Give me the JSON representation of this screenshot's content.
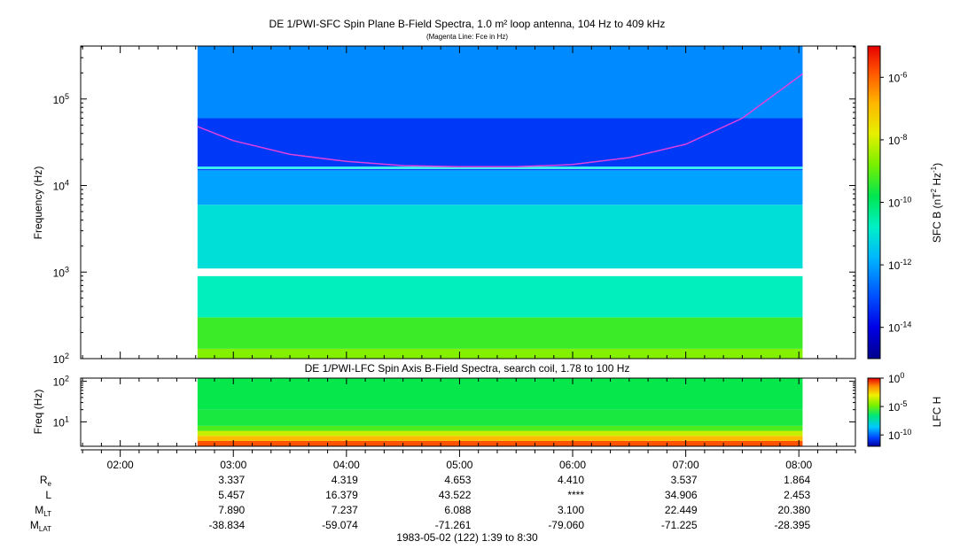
{
  "title": "DE 1/PWI-SFC  Spin Plane B-Field Spectra, 1.0 m² loop antenna, 104 Hz to 409 kHz",
  "subtitle": "(Magenta Line: Fce in Hz)",
  "date_footer": "1983-05-02 (122) 1:39 to 8:30",
  "colors": {
    "magenta_line": "#e040e0",
    "gap_line": "#ffffff",
    "cyan_line": "#40f0f0"
  },
  "chart_data": [
    {
      "type": "heatmap",
      "title": "DE 1/PWI-SFC  Spin Plane B-Field Spectra, 1.0 m² loop antenna, 104 Hz to 409 kHz",
      "subtitle": "(Magenta Line: Fce in Hz)",
      "ylabel": "Frequency (Hz)",
      "yscale": "log",
      "ylim": [
        100,
        409000
      ],
      "y_ticks": [
        {
          "value": 100,
          "base": "10",
          "exp": "2"
        },
        {
          "value": 1000,
          "base": "10",
          "exp": "3"
        },
        {
          "value": 10000,
          "base": "10",
          "exp": "4"
        },
        {
          "value": 100000,
          "base": "10",
          "exp": "5"
        }
      ],
      "data_time_range": [
        "02:41",
        "08:02"
      ],
      "colorbar": {
        "label": "SFC B (nT² Hz⁻¹)",
        "label_main": "SFC B (nT",
        "label_exp": "2",
        "label_mid": " Hz",
        "label_exp2": "-1",
        "label_end": ")",
        "scale": "log",
        "range": [
          1e-15,
          1e-05
        ],
        "ticks": [
          {
            "value": 1e-06,
            "base": "10",
            "exp": "-6"
          },
          {
            "value": 1e-08,
            "base": "10",
            "exp": "-8"
          },
          {
            "value": 1e-10,
            "base": "10",
            "exp": "-10"
          },
          {
            "value": 1e-12,
            "base": "10",
            "exp": "-12"
          },
          {
            "value": 1e-14,
            "base": "10",
            "exp": "-14"
          }
        ]
      },
      "series": [
        {
          "name": "Fce in Hz",
          "x": [
            "02:41",
            "03:00",
            "03:30",
            "04:00",
            "04:30",
            "05:00",
            "05:30",
            "06:00",
            "06:30",
            "07:00",
            "07:30",
            "08:02"
          ],
          "y": [
            48000,
            33000,
            23000,
            19000,
            17000,
            16500,
            16500,
            17500,
            21000,
            30000,
            60000,
            195000
          ]
        }
      ],
      "bands": [
        {
          "f_low": 100,
          "f_high": 130,
          "level": 2e-09
        },
        {
          "f_low": 130,
          "f_high": 300,
          "level": 5e-10
        },
        {
          "f_low": 300,
          "f_high": 900,
          "level": 2e-11
        },
        {
          "f_low": 1100,
          "f_high": 6000,
          "level": 8e-12
        },
        {
          "f_low": 6000,
          "f_high": 15000,
          "level": 1e-12
        },
        {
          "f_low": 15000,
          "f_high": 60000,
          "level": 5e-14
        },
        {
          "f_low": 60000,
          "f_high": 409000,
          "level": 5e-13
        }
      ]
    },
    {
      "type": "heatmap",
      "title": "DE 1/PWI-LFC  Spin Axis B-Field Spectra, search coil, 1.78 to 100 Hz",
      "ylabel": "Freq (Hz)",
      "yscale": "log",
      "ylim": [
        2.5,
        120
      ],
      "y_ticks": [
        {
          "value": 10,
          "base": "10",
          "exp": "1"
        },
        {
          "value": 100,
          "base": "10",
          "exp": "2"
        }
      ],
      "colorbar": {
        "label": "LFC H",
        "scale": "log",
        "range": [
          1e-12,
          1
        ],
        "ticks": [
          {
            "value": 1,
            "base": "10",
            "exp": "0"
          },
          {
            "value": 1e-05,
            "base": "10",
            "exp": "-5"
          },
          {
            "value": 1e-10,
            "base": "10",
            "exp": "-10"
          }
        ]
      },
      "bands": [
        {
          "f_low": 2.5,
          "f_high": 3.4,
          "level": 0.1
        },
        {
          "f_low": 3.4,
          "f_high": 4.5,
          "level": 0.005
        },
        {
          "f_low": 4.5,
          "f_high": 6.0,
          "level": 0.0002
        },
        {
          "f_low": 6.0,
          "f_high": 8.0,
          "level": 1e-05
        },
        {
          "f_low": 8.0,
          "f_high": 20.0,
          "level": 3e-06
        },
        {
          "f_low": 20.0,
          "f_high": 120,
          "level": 2e-06
        }
      ]
    }
  ],
  "time_axis": {
    "tick_labels": [
      "02:00",
      "03:00",
      "04:00",
      "05:00",
      "06:00",
      "07:00",
      "08:00"
    ],
    "range": [
      "01:39",
      "08:30"
    ]
  },
  "ephemeris": [
    {
      "label": "R",
      "sub": "e",
      "values": [
        "3.337",
        "4.319",
        "4.653",
        "4.410",
        "3.537",
        "1.864"
      ]
    },
    {
      "label": "L",
      "sub": "",
      "values": [
        "5.457",
        "16.379",
        "43.522",
        "****",
        "34.906",
        "2.453"
      ]
    },
    {
      "label": "M",
      "sub": "LT",
      "values": [
        "7.890",
        "7.237",
        "6.088",
        "3.100",
        "22.449",
        "20.380"
      ]
    },
    {
      "label": "M",
      "sub": "LAT",
      "values": [
        "-38.834",
        "-59.074",
        "-71.261",
        "-79.060",
        "-71.225",
        "-28.395"
      ]
    }
  ]
}
